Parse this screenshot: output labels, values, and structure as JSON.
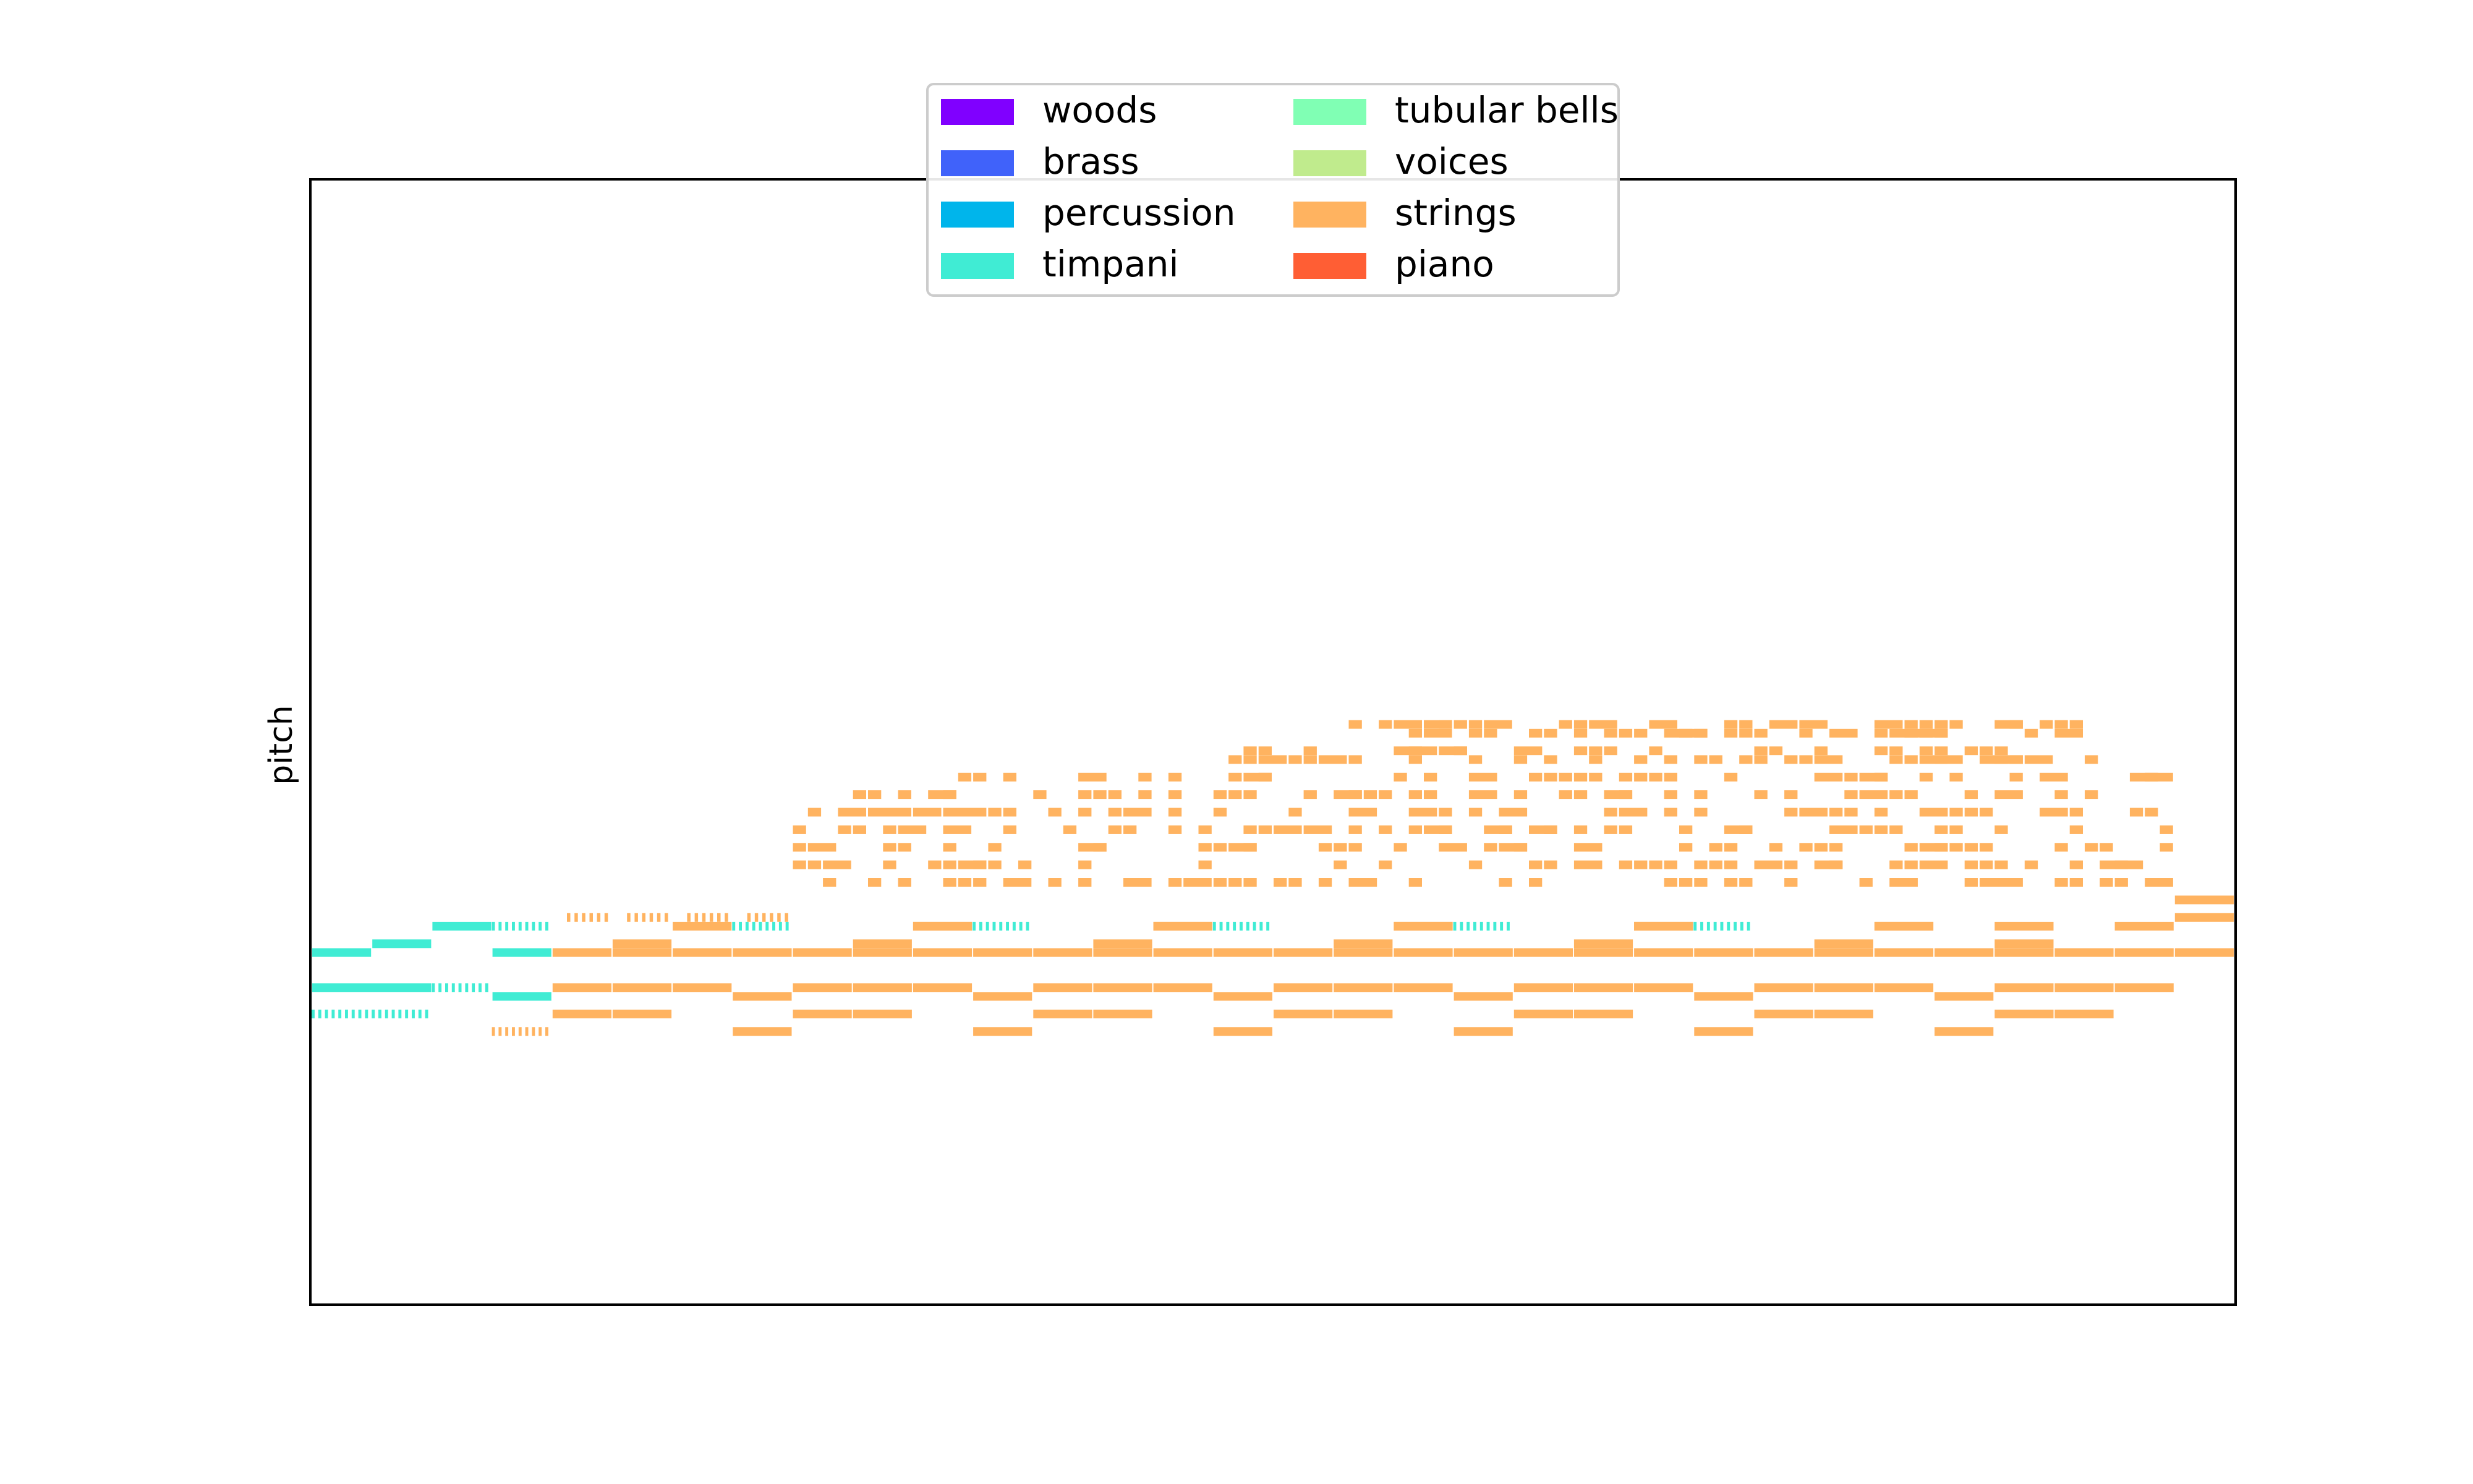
{
  "chart_data": {
    "type": "piano-roll",
    "title": "",
    "xlabel": "",
    "ylabel": "pitch",
    "x_ticks": false,
    "y_ticks": false,
    "ylim": [
      0,
      128
    ],
    "xlim": [
      0,
      128
    ],
    "legend": {
      "placement": "top-center",
      "columns": 2,
      "entries": [
        {
          "name": "woods",
          "color": "#8000ff"
        },
        {
          "name": "brass",
          "color": "#4062fa"
        },
        {
          "name": "percussion",
          "color": "#00b5eb"
        },
        {
          "name": "timpani",
          "color": "#40ecd4"
        },
        {
          "name": "tubular bells",
          "color": "#80ffb4"
        },
        {
          "name": "voices",
          "color": "#c0eb8d"
        },
        {
          "name": "strings",
          "color": "#ffb360"
        },
        {
          "name": "piano",
          "color": "#ff5e34"
        }
      ]
    },
    "notes": [
      {
        "i": "timpani",
        "p": 40,
        "s": 0,
        "e": 4
      },
      {
        "i": "timpani",
        "p": 41,
        "s": 4,
        "e": 8
      },
      {
        "i": "timpani",
        "p": 40,
        "s": 12,
        "e": 16
      },
      {
        "i": "timpani",
        "p": 43,
        "s": 8,
        "e": 12
      },
      {
        "i": "timpani",
        "p": 36,
        "s": 0,
        "e": 8
      },
      {
        "i": "timpani",
        "p": 35,
        "s": 12,
        "e": 16
      },
      {
        "i": "timpani",
        "p": 36,
        "s": 8,
        "e": 12,
        "trill": 9
      },
      {
        "i": "timpani",
        "p": 33,
        "s": 0,
        "e": 8,
        "trill": 18
      },
      {
        "i": "timpani",
        "p": 43,
        "s": 12,
        "e": 16,
        "trill": 9
      },
      {
        "i": "timpani",
        "p": 43,
        "s": 28,
        "e": 32,
        "trill": 9
      },
      {
        "i": "timpani",
        "p": 43,
        "s": 44,
        "e": 48,
        "trill": 9
      },
      {
        "i": "timpani",
        "p": 43,
        "s": 60,
        "e": 64,
        "trill": 9
      },
      {
        "i": "timpani",
        "p": 43,
        "s": 76,
        "e": 80,
        "trill": 9
      },
      {
        "i": "timpani",
        "p": 43,
        "s": 92,
        "e": 96,
        "trill": 9
      },
      {
        "i": "strings",
        "p": 31,
        "s": 12,
        "e": 16,
        "trill": 9
      },
      {
        "i": "strings",
        "p": 44,
        "s": 17,
        "e": 20,
        "trill": 6
      },
      {
        "i": "strings",
        "p": 44,
        "s": 21,
        "e": 24,
        "trill": 6
      },
      {
        "i": "strings",
        "p": 44,
        "s": 25,
        "e": 28,
        "trill": 6
      },
      {
        "i": "strings",
        "p": 44,
        "s": 29,
        "e": 32,
        "trill": 6
      },
      {
        "i": "strings",
        "p": 40,
        "s": 16,
        "e": 128,
        "grid": 4
      },
      {
        "i": "strings",
        "p": 41,
        "s": 20,
        "e": 24
      },
      {
        "i": "strings",
        "p": 43,
        "s": 24,
        "e": 28
      },
      {
        "i": "strings",
        "p": 41,
        "s": 36,
        "e": 40
      },
      {
        "i": "strings",
        "p": 43,
        "s": 40,
        "e": 44
      },
      {
        "i": "strings",
        "p": 41,
        "s": 52,
        "e": 56
      },
      {
        "i": "strings",
        "p": 43,
        "s": 56,
        "e": 60
      },
      {
        "i": "strings",
        "p": 41,
        "s": 68,
        "e": 72
      },
      {
        "i": "strings",
        "p": 43,
        "s": 72,
        "e": 76
      },
      {
        "i": "strings",
        "p": 41,
        "s": 84,
        "e": 88
      },
      {
        "i": "strings",
        "p": 43,
        "s": 88,
        "e": 92
      },
      {
        "i": "strings",
        "p": 41,
        "s": 100,
        "e": 104
      },
      {
        "i": "strings",
        "p": 43,
        "s": 104,
        "e": 108
      },
      {
        "i": "strings",
        "p": 41,
        "s": 112,
        "e": 116
      },
      {
        "i": "strings",
        "p": 43,
        "s": 120,
        "e": 124
      },
      {
        "i": "strings",
        "p": 44,
        "s": 124,
        "e": 128
      },
      {
        "i": "strings",
        "p": 46,
        "s": 124,
        "e": 128
      },
      {
        "i": "strings",
        "p": 36,
        "s": 16,
        "e": 124,
        "grid": 4,
        "skip": [
          28,
          44,
          60,
          76,
          92,
          108
        ]
      },
      {
        "i": "strings",
        "p": 35,
        "s": 28,
        "e": 32
      },
      {
        "i": "strings",
        "p": 35,
        "s": 44,
        "e": 48
      },
      {
        "i": "strings",
        "p": 35,
        "s": 60,
        "e": 64
      },
      {
        "i": "strings",
        "p": 35,
        "s": 76,
        "e": 80
      },
      {
        "i": "strings",
        "p": 35,
        "s": 92,
        "e": 96
      },
      {
        "i": "strings",
        "p": 35,
        "s": 108,
        "e": 112
      },
      {
        "i": "strings",
        "p": 33,
        "s": 16,
        "e": 24,
        "grid": 4
      },
      {
        "i": "strings",
        "p": 33,
        "s": 32,
        "e": 40,
        "grid": 4
      },
      {
        "i": "strings",
        "p": 33,
        "s": 48,
        "e": 56,
        "grid": 4
      },
      {
        "i": "strings",
        "p": 33,
        "s": 64,
        "e": 72,
        "grid": 4
      },
      {
        "i": "strings",
        "p": 33,
        "s": 80,
        "e": 88,
        "grid": 4
      },
      {
        "i": "strings",
        "p": 33,
        "s": 96,
        "e": 104,
        "grid": 4
      },
      {
        "i": "strings",
        "p": 33,
        "s": 112,
        "e": 120,
        "grid": 4
      },
      {
        "i": "strings",
        "p": 31,
        "s": 28,
        "e": 32
      },
      {
        "i": "strings",
        "p": 31,
        "s": 44,
        "e": 48
      },
      {
        "i": "strings",
        "p": 31,
        "s": 60,
        "e": 64
      },
      {
        "i": "strings",
        "p": 31,
        "s": 76,
        "e": 80
      },
      {
        "i": "strings",
        "p": 31,
        "s": 92,
        "e": 96
      },
      {
        "i": "strings",
        "p": 31,
        "s": 108,
        "e": 112
      },
      {
        "i": "strings",
        "p": 43,
        "s": 40,
        "e": 44
      },
      {
        "i": "strings",
        "p": 43,
        "s": 56,
        "e": 60
      },
      {
        "i": "strings",
        "p": 43,
        "s": 72,
        "e": 76
      },
      {
        "i": "strings",
        "p": 43,
        "s": 88,
        "e": 92
      },
      {
        "i": "strings",
        "p": 43,
        "s": 104,
        "e": 108
      },
      {
        "i": "strings",
        "p": 43,
        "s": 112,
        "e": 116
      }
    ],
    "scatter_ranges": [
      {
        "i": "strings",
        "p": 48,
        "s": 32,
        "e": 124
      },
      {
        "i": "strings",
        "p": 50,
        "s": 32,
        "e": 124
      },
      {
        "i": "strings",
        "p": 52,
        "s": 32,
        "e": 124
      },
      {
        "i": "strings",
        "p": 54,
        "s": 32,
        "e": 124
      },
      {
        "i": "strings",
        "p": 56,
        "s": 32,
        "e": 124
      },
      {
        "i": "strings",
        "p": 58,
        "s": 33,
        "e": 120
      },
      {
        "i": "strings",
        "p": 60,
        "s": 42,
        "e": 124
      },
      {
        "i": "strings",
        "p": 62,
        "s": 58,
        "e": 124
      },
      {
        "i": "strings",
        "p": 63,
        "s": 62,
        "e": 120
      },
      {
        "i": "strings",
        "p": 65,
        "s": 68,
        "e": 118
      },
      {
        "i": "strings",
        "p": 66,
        "s": 68,
        "e": 118
      }
    ]
  }
}
